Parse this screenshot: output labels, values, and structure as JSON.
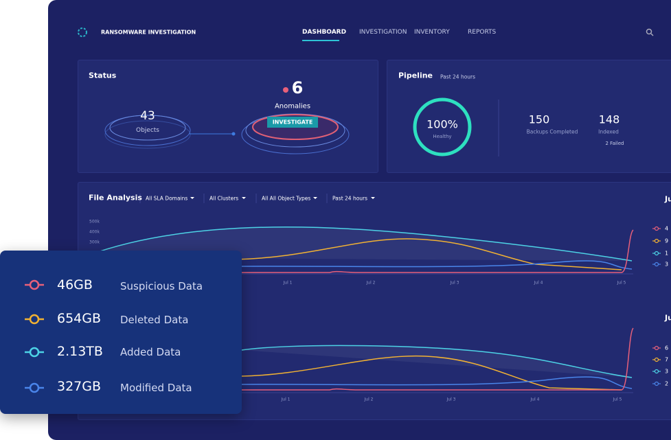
{
  "app": {
    "title": "RANSOMWARE INVESTIGATION",
    "nav": [
      "DASHBOARD",
      "INVESTIGATION",
      "INVENTORY",
      "REPORTS"
    ]
  },
  "status": {
    "title": "Status",
    "objects_count": "43",
    "objects_label": "Objects",
    "anomalies_count": "6",
    "anomalies_label": "Anomalies",
    "button": "INVESTIGATE"
  },
  "pipeline": {
    "title": "Pipeline",
    "period": "Past 24 hours",
    "health_value": "100%",
    "health_label": "Healthy",
    "stats": [
      {
        "value": "150",
        "label": "Backups Completed"
      },
      {
        "value": "148",
        "label": "Indexed",
        "note": "2 Failed"
      }
    ]
  },
  "file_analysis": {
    "title": "File Analysis",
    "filters": [
      "All SLA Domains",
      "All Clusters",
      "All All Object Types",
      "Past 24 hours"
    ],
    "charts": [
      {
        "heading": "Ju",
        "y_labels": [
          "500k",
          "400k",
          "300k"
        ],
        "x_labels": [
          "Jul 1",
          "Jul 2",
          "Jul 3",
          "Jul 4",
          "Jul 5"
        ],
        "legend": [
          "4",
          "9",
          "1",
          "3"
        ]
      },
      {
        "heading": "Ju",
        "x_labels": [
          "Jul 1",
          "Jul 2",
          "Jul 3",
          "Jul 4",
          "Jul 5"
        ],
        "legend": [
          "6",
          "7",
          "3",
          "2"
        ]
      }
    ]
  },
  "legend_card": {
    "items": [
      {
        "value": "46GB",
        "label": "Suspicious Data"
      },
      {
        "value": "654GB",
        "label": "Deleted Data"
      },
      {
        "value": "2.13TB",
        "label": "Added Data"
      },
      {
        "value": "327GB",
        "label": "Modified Data"
      }
    ]
  }
}
